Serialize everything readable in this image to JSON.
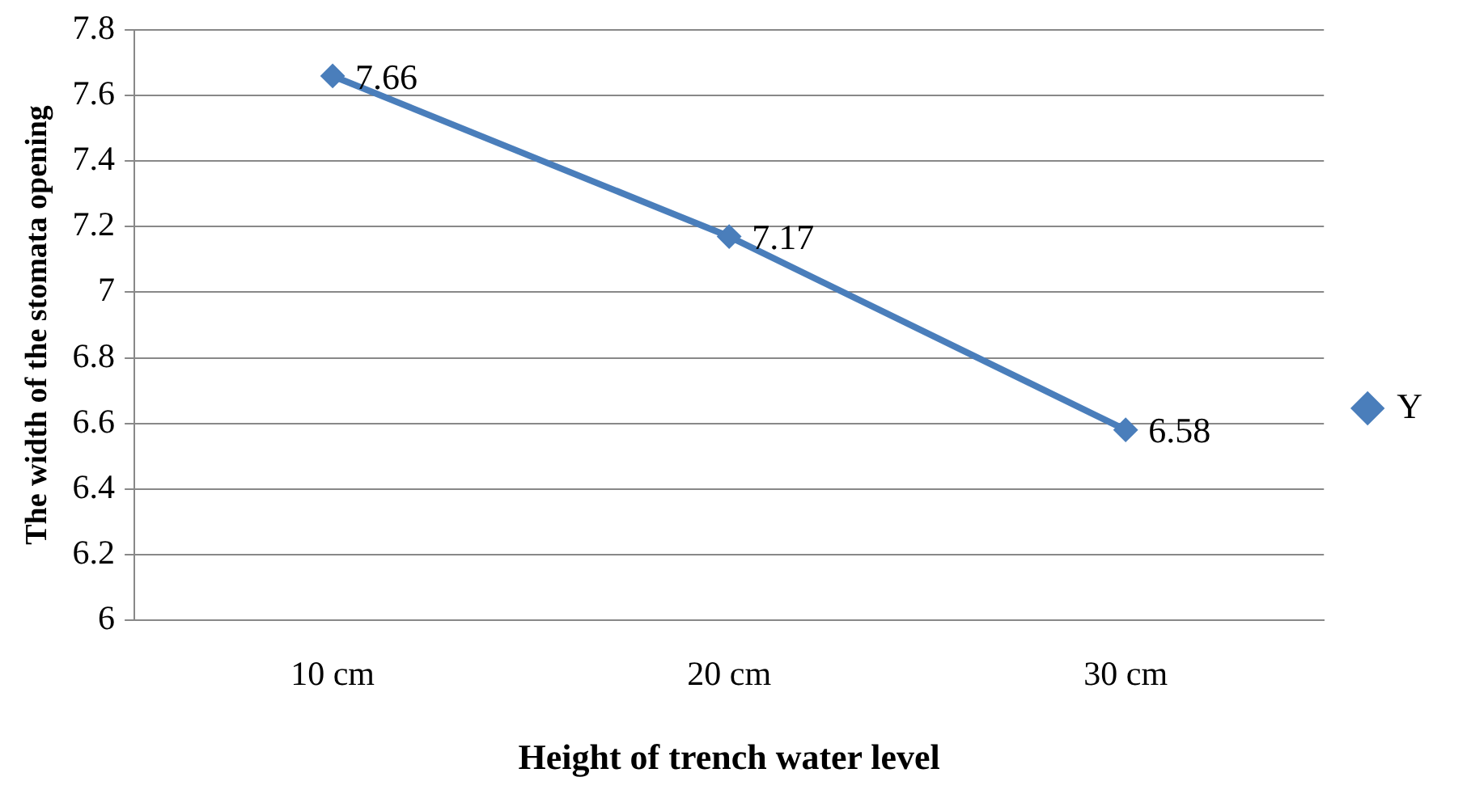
{
  "chart_data": {
    "type": "line",
    "xlabel": "Height of trench water level",
    "ylabel": "The width of the stomata opening",
    "categories": [
      "10 cm",
      "20 cm",
      "30 cm"
    ],
    "series": [
      {
        "name": "Y",
        "color": "#4a7ebb",
        "values": [
          7.66,
          7.17,
          6.58
        ]
      }
    ],
    "ylim": [
      6,
      7.8
    ],
    "yticks": [
      6,
      6.2,
      6.4,
      6.6,
      6.8,
      7,
      7.2,
      7.4,
      7.6,
      7.8
    ],
    "grid": "y",
    "legend": "right",
    "marker": "diamond",
    "line_style": "solid",
    "data_labels": true
  }
}
